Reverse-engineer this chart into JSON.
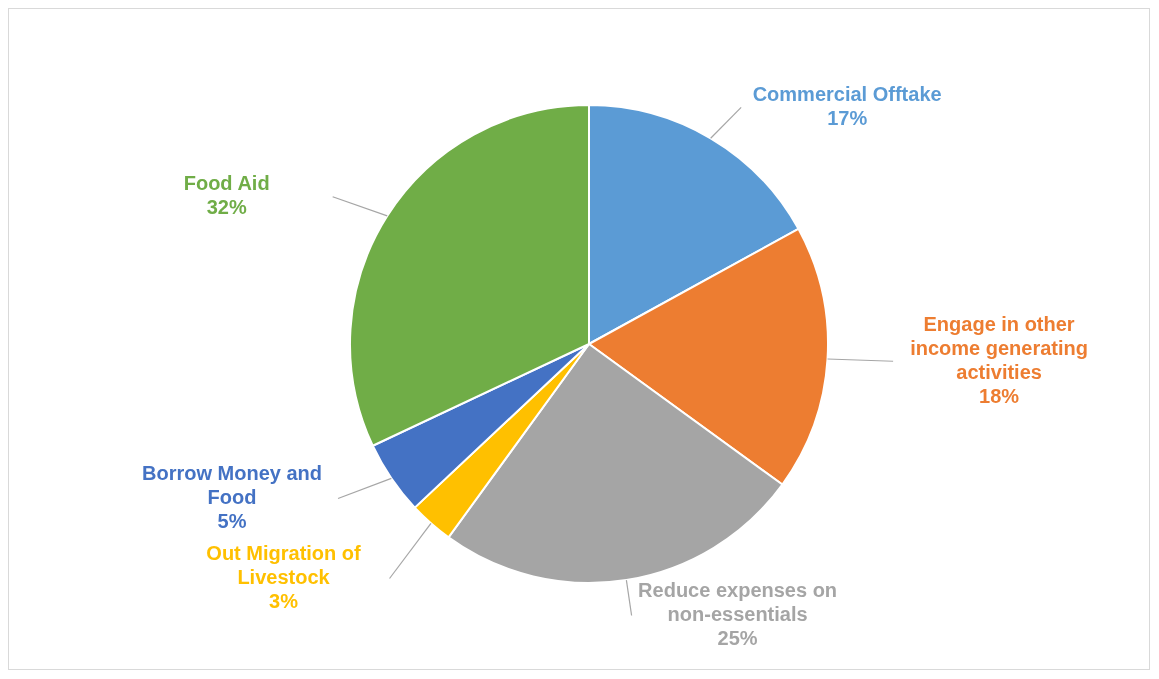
{
  "chart_data": {
    "type": "pie",
    "categories": [
      "Commercial Offtake",
      "Engage in other income generating activities",
      "Reduce expenses on non-essentials",
      "Out Migration of Livestock",
      "Borrow Money and Food",
      "Food Aid"
    ],
    "values": [
      17,
      18,
      25,
      3,
      5,
      32
    ],
    "value_labels": [
      "17%",
      "18%",
      "25%",
      "3%",
      "5%",
      "32%"
    ],
    "colors": [
      "#5b9bd5",
      "#ed7d31",
      "#a5a5a5",
      "#ffc000",
      "#4472c4",
      "#70ad47"
    ],
    "legend": false
  }
}
